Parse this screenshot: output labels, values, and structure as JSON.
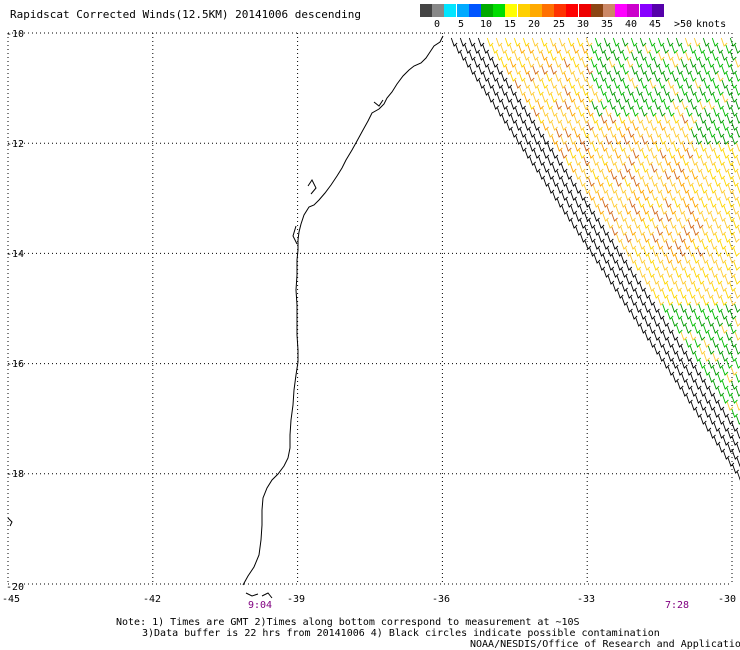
{
  "title": "Rapidscat Corrected Winds(12.5KM) 20141006 descending",
  "legend": {
    "unit": "knots",
    "labels": [
      "0",
      "5",
      "10",
      "15",
      "20",
      "25",
      "30",
      "35",
      "40",
      "45",
      ">50"
    ],
    "colors": [
      "#444444",
      "#888888",
      "#00e5ff",
      "#00aaff",
      "#0055ff",
      "#00aa00",
      "#00dd00",
      "#ffff00",
      "#ffd000",
      "#ffaa00",
      "#ff7000",
      "#ff3300",
      "#ff0000",
      "#ee0000",
      "#8b4513",
      "#cc8866",
      "#ff00ff",
      "#cc00cc",
      "#8800ff",
      "#5500aa"
    ]
  },
  "map": {
    "lon_range": [
      -45,
      -30
    ],
    "lat_range": [
      -20,
      -10
    ],
    "lon_ticks": [
      "-45",
      "-42",
      "-39",
      "-36",
      "-33",
      "-30"
    ],
    "lat_ticks": [
      "-10",
      "-12",
      "-14",
      "-16",
      "-18",
      "-20"
    ],
    "grid": "dotted",
    "coastline_color": "#000000"
  },
  "times": [
    "9:04",
    "7:28"
  ],
  "notes": [
    "Note: 1) Times are GMT 2)Times along bottom correspond to measurement at ~10S",
    "3)Data buffer is 22 hrs from 20141006 4) Black circles indicate possible contamination",
    "NOAA/NESDIS/Office of Research and Applications"
  ]
}
